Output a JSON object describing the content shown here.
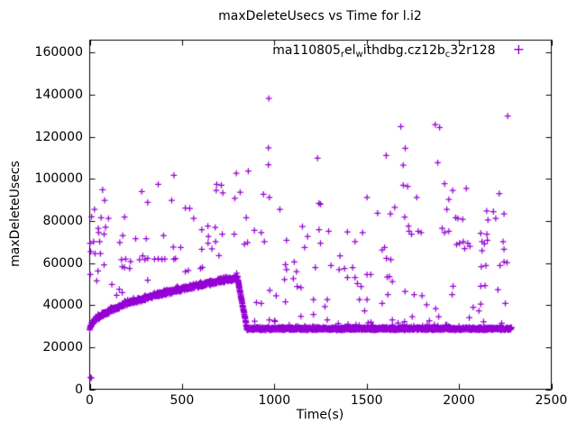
{
  "title": "maxDeleteUsecs vs Time for l.i2",
  "legend": {
    "label_raw": "ma110805_rel_withdbg.cz12b_c32r128",
    "label_parts": [
      {
        "text": "ma110805"
      },
      {
        "text": "r",
        "subscript": true
      },
      {
        "text": "el"
      },
      {
        "text": "w",
        "subscript": true
      },
      {
        "text": "ithdbg.cz12b"
      },
      {
        "text": "c",
        "subscript": true
      },
      {
        "text": "32r128"
      }
    ],
    "marker_glyph": "+"
  },
  "colors": {
    "marker": "#9400D3",
    "axis": "#000000",
    "text": "#000000",
    "background": "#ffffff"
  },
  "chart_data": {
    "type": "scatter",
    "title": "maxDeleteUsecs vs Time for l.i2",
    "xlabel": "Time(s)",
    "ylabel": "maxDeleteUsecs",
    "xlim": [
      0,
      2500
    ],
    "ylim": [
      0,
      166000
    ],
    "xticks": [
      0,
      500,
      1000,
      1500,
      2000,
      2500
    ],
    "yticks": [
      0,
      20000,
      40000,
      60000,
      80000,
      100000,
      120000,
      140000,
      160000
    ],
    "grid": false,
    "legend_position": "top-right-inside",
    "series": [
      {
        "name": "ma110805_rel_withdbg.cz12b_c32r128",
        "marker": "plus",
        "color": "#9400D3",
        "band": {
          "description": "dense band: rises sqrt-like from ~28200 at t=0 to ~53000 at t=800, sharp drop to ~28800 by t=852, then flat ~28800 until t=2285",
          "seed": 42,
          "rise": {
            "x0": 0,
            "x1": 800,
            "y0": 28200,
            "y1": 53000,
            "shape": "sqrt",
            "step": 1.15,
            "noise": 1350,
            "spike_chance": 0.03,
            "spike_max": 1500
          },
          "drop": {
            "x0": 800,
            "x1": 852,
            "y0": 53000,
            "y1": 28900,
            "shape": "linear",
            "step": 0.7,
            "noise": 850
          },
          "flat": {
            "x0": 852,
            "x1": 2285,
            "level": 28800,
            "step": 1.18,
            "noise": 850,
            "spike_chance": 0.05,
            "spike_max": 2400,
            "big_spike_chance": 0.008,
            "big_spike_extra": 1300
          }
        },
        "isolated_low_points": [
          [
            4,
            5600
          ],
          [
            9,
            5300
          ]
        ],
        "outliers": [
          [
            2,
            69400
          ],
          [
            3,
            54500
          ],
          [
            5,
            65500
          ],
          [
            10,
            82000
          ],
          [
            21,
            70200
          ],
          [
            26,
            85500
          ],
          [
            29,
            64500
          ],
          [
            38,
            51500
          ],
          [
            45,
            56200
          ],
          [
            46,
            76500
          ],
          [
            49,
            74500
          ],
          [
            54,
            70200
          ],
          [
            58,
            64500
          ],
          [
            62,
            81600
          ],
          [
            70,
            94800
          ],
          [
            78,
            73700
          ],
          [
            78,
            59100
          ],
          [
            81,
            89800
          ],
          [
            86,
            77000
          ],
          [
            102,
            81200
          ],
          [
            120,
            49800
          ],
          [
            146,
            44700
          ],
          [
            160,
            47600
          ],
          [
            163,
            69800
          ],
          [
            172,
            61600
          ],
          [
            176,
            58300
          ],
          [
            176,
            46000
          ],
          [
            179,
            73100
          ],
          [
            189,
            81900
          ],
          [
            189,
            57900
          ],
          [
            195,
            61900
          ],
          [
            216,
            57400
          ],
          [
            221,
            60800
          ],
          [
            249,
            71600
          ],
          [
            270,
            61600
          ],
          [
            282,
            94000
          ],
          [
            287,
            63400
          ],
          [
            299,
            61600
          ],
          [
            306,
            71600
          ],
          [
            314,
            88800
          ],
          [
            314,
            62200
          ],
          [
            314,
            51900
          ],
          [
            351,
            61800
          ],
          [
            371,
            97400
          ],
          [
            371,
            62000
          ],
          [
            391,
            61700
          ],
          [
            400,
            73100
          ],
          [
            407,
            61900
          ],
          [
            444,
            89800
          ],
          [
            453,
            67600
          ],
          [
            456,
            101700
          ],
          [
            456,
            61800
          ],
          [
            465,
            62100
          ],
          [
            493,
            67400
          ],
          [
            518,
            86200
          ],
          [
            518,
            55900
          ],
          [
            534,
            56500
          ],
          [
            542,
            86000
          ],
          [
            563,
            81200
          ],
          [
            600,
            57400
          ],
          [
            607,
            75900
          ],
          [
            607,
            66500
          ],
          [
            610,
            58000
          ],
          [
            640,
            77600
          ],
          [
            641,
            69400
          ],
          [
            643,
            72600
          ],
          [
            662,
            66800
          ],
          [
            680,
            76900
          ],
          [
            682,
            70200
          ],
          [
            685,
            94500
          ],
          [
            688,
            97400
          ],
          [
            700,
            63500
          ],
          [
            713,
            97000
          ],
          [
            718,
            73700
          ],
          [
            721,
            93400
          ],
          [
            783,
            73700
          ],
          [
            786,
            90800
          ],
          [
            794,
            102700
          ],
          [
            815,
            93700
          ],
          [
            838,
            69000
          ],
          [
            848,
            81600
          ],
          [
            855,
            69800
          ],
          [
            859,
            103700
          ],
          [
            892,
            75500
          ],
          [
            903,
            41200
          ],
          [
            929,
            74500
          ],
          [
            929,
            40800
          ],
          [
            941,
            92700
          ],
          [
            946,
            70200
          ],
          [
            968,
            114800
          ],
          [
            968,
            106700
          ],
          [
            970,
            138300
          ],
          [
            973,
            91200
          ],
          [
            973,
            33000
          ],
          [
            975,
            47000
          ],
          [
            1001,
            32600
          ],
          [
            1010,
            44500
          ],
          [
            1030,
            85500
          ],
          [
            1055,
            52200
          ],
          [
            1060,
            59300
          ],
          [
            1060,
            41600
          ],
          [
            1066,
            70800
          ],
          [
            1066,
            56900
          ],
          [
            1103,
            52600
          ],
          [
            1108,
            60500
          ],
          [
            1120,
            55900
          ],
          [
            1124,
            48800
          ],
          [
            1144,
            48300
          ],
          [
            1144,
            34700
          ],
          [
            1152,
            77400
          ],
          [
            1164,
            67400
          ],
          [
            1180,
            72600
          ],
          [
            1212,
            42600
          ],
          [
            1212,
            35500
          ],
          [
            1222,
            57900
          ],
          [
            1234,
            109900
          ],
          [
            1242,
            88400
          ],
          [
            1242,
            75900
          ],
          [
            1250,
            88000
          ],
          [
            1250,
            69400
          ],
          [
            1274,
            39300
          ],
          [
            1287,
            42600
          ],
          [
            1287,
            33000
          ],
          [
            1294,
            75100
          ],
          [
            1307,
            58800
          ],
          [
            1351,
            56900
          ],
          [
            1356,
            63400
          ],
          [
            1380,
            57400
          ],
          [
            1396,
            74800
          ],
          [
            1396,
            53100
          ],
          [
            1424,
            57900
          ],
          [
            1437,
            70200
          ],
          [
            1437,
            53100
          ],
          [
            1450,
            50200
          ],
          [
            1461,
            42600
          ],
          [
            1470,
            48800
          ],
          [
            1478,
            74500
          ],
          [
            1489,
            37300
          ],
          [
            1502,
            91200
          ],
          [
            1502,
            54500
          ],
          [
            1502,
            42600
          ],
          [
            1522,
            54500
          ],
          [
            1559,
            83700
          ],
          [
            1584,
            66200
          ],
          [
            1584,
            40800
          ],
          [
            1597,
            67400
          ],
          [
            1606,
            111100
          ],
          [
            1607,
            62200
          ],
          [
            1611,
            53300
          ],
          [
            1615,
            45000
          ],
          [
            1623,
            53600
          ],
          [
            1629,
            83400
          ],
          [
            1631,
            61600
          ],
          [
            1639,
            51200
          ],
          [
            1639,
            33000
          ],
          [
            1652,
            86500
          ],
          [
            1685,
            124900
          ],
          [
            1698,
            106500
          ],
          [
            1698,
            97000
          ],
          [
            1706,
            81900
          ],
          [
            1708,
            46500
          ],
          [
            1709,
            114600
          ],
          [
            1722,
            96500
          ],
          [
            1727,
            77600
          ],
          [
            1730,
            75100
          ],
          [
            1743,
            73700
          ],
          [
            1747,
            34500
          ],
          [
            1757,
            45000
          ],
          [
            1771,
            91200
          ],
          [
            1779,
            75100
          ],
          [
            1795,
            74500
          ],
          [
            1800,
            44500
          ],
          [
            1825,
            40200
          ],
          [
            1871,
            125800
          ],
          [
            1874,
            38300
          ],
          [
            1885,
            107700
          ],
          [
            1890,
            34500
          ],
          [
            1895,
            124500
          ],
          [
            1909,
            76500
          ],
          [
            1922,
            97700
          ],
          [
            1922,
            74500
          ],
          [
            1934,
            85500
          ],
          [
            1945,
            90200
          ],
          [
            1945,
            75100
          ],
          [
            1963,
            45000
          ],
          [
            1966,
            94500
          ],
          [
            1968,
            49000
          ],
          [
            1982,
            81600
          ],
          [
            1987,
            68800
          ],
          [
            1994,
            81200
          ],
          [
            2003,
            69400
          ],
          [
            2020,
            80800
          ],
          [
            2023,
            70200
          ],
          [
            2031,
            66900
          ],
          [
            2040,
            95500
          ],
          [
            2048,
            69400
          ],
          [
            2056,
            34000
          ],
          [
            2059,
            67900
          ],
          [
            2077,
            39000
          ],
          [
            2108,
            37300
          ],
          [
            2118,
            74100
          ],
          [
            2118,
            49000
          ],
          [
            2118,
            40500
          ],
          [
            2121,
            58300
          ],
          [
            2125,
            70200
          ],
          [
            2125,
            65900
          ],
          [
            2138,
            69100
          ],
          [
            2141,
            49300
          ],
          [
            2146,
            58800
          ],
          [
            2150,
            84800
          ],
          [
            2151,
            73700
          ],
          [
            2154,
            70800
          ],
          [
            2157,
            80500
          ],
          [
            2186,
            84500
          ],
          [
            2199,
            81200
          ],
          [
            2211,
            47300
          ],
          [
            2218,
            93000
          ],
          [
            2222,
            58800
          ],
          [
            2239,
            70200
          ],
          [
            2244,
            83400
          ],
          [
            2244,
            66500
          ],
          [
            2244,
            60500
          ],
          [
            2251,
            40800
          ],
          [
            2260,
            60200
          ],
          [
            2264,
            129900
          ]
        ]
      }
    ]
  }
}
